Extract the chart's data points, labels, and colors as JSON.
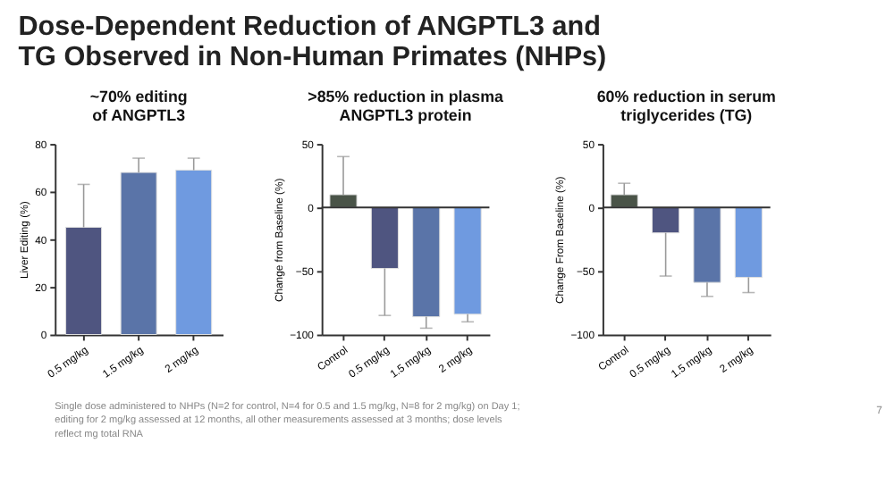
{
  "chart_data": [
    {
      "type": "bar",
      "title": "Dose-Dependent Reduction of ANGPTL3 and TG Observed in Non-Human Primates (NHPs)",
      "subtitle": "~70% editing of ANGPTL3",
      "ylabel": "Liver Editing (%)",
      "categories": [
        "0.5 mg/kg",
        "1.5 mg/kg",
        "2 mg/kg"
      ],
      "values": [
        45,
        68,
        69
      ],
      "colors": [
        "#4f5580",
        "#5a74a8",
        "#6f9ae0"
      ],
      "errors": [
        [
          45,
          63
        ],
        [
          68,
          74
        ],
        [
          69,
          74
        ]
      ],
      "ylim": [
        0,
        80
      ],
      "yticks": [
        0,
        20,
        40,
        60,
        80
      ],
      "grid": false,
      "annotations": [
        "Single dose administered to NHPs (N=2 for control, N=4 for 0.5 and 1.5 mg/kg, N=8 for 2 mg/kg) on Day 1; editing for 2 mg/kg assessed at 12 months, all other measurements assessed at 3 months; dose levels reflect mg total RNA",
        "7"
      ]
    },
    {
      "type": "bar",
      "title": ">85% reduction in plasma ANGPTL3 protein",
      "ylabel": "Change from Baseline (%)",
      "categories": [
        "Control",
        "0.5 mg/kg",
        "1.5 mg/kg",
        "2 mg/kg"
      ],
      "values": [
        10,
        -48,
        -86,
        -84
      ],
      "colors": [
        "#4a5448",
        "#4f5580",
        "#5a74a8",
        "#6f9ae0"
      ],
      "errors": [
        [
          10,
          40
        ],
        [
          -85,
          -48
        ],
        [
          -95,
          -86
        ],
        [
          -90,
          -84
        ]
      ],
      "ylim": [
        -100,
        50
      ],
      "yticks": [
        -100,
        -50,
        0,
        50
      ],
      "grid": false,
      "ref_lines": [
        {
          "axis": "y",
          "value": 0,
          "color": "#333333"
        }
      ]
    },
    {
      "type": "bar",
      "title": "60% reduction in serum triglycerides (TG)",
      "ylabel": "Change From Baseline (%)",
      "categories": [
        "Control",
        "0.5 mg/kg",
        "1.5 mg/kg",
        "2 mg/kg"
      ],
      "values": [
        10,
        -20,
        -59,
        -55
      ],
      "colors": [
        "#4a5448",
        "#4f5580",
        "#5a74a8",
        "#6f9ae0"
      ],
      "errors": [
        [
          10,
          19
        ],
        [
          -54,
          -20
        ],
        [
          -70,
          -59
        ],
        [
          -67,
          -55
        ]
      ],
      "ylim": [
        -100,
        50
      ],
      "yticks": [
        -100,
        -50,
        0,
        50
      ],
      "grid": false,
      "ref_lines": [
        {
          "axis": "y",
          "value": 0,
          "color": "#333333"
        }
      ]
    }
  ]
}
